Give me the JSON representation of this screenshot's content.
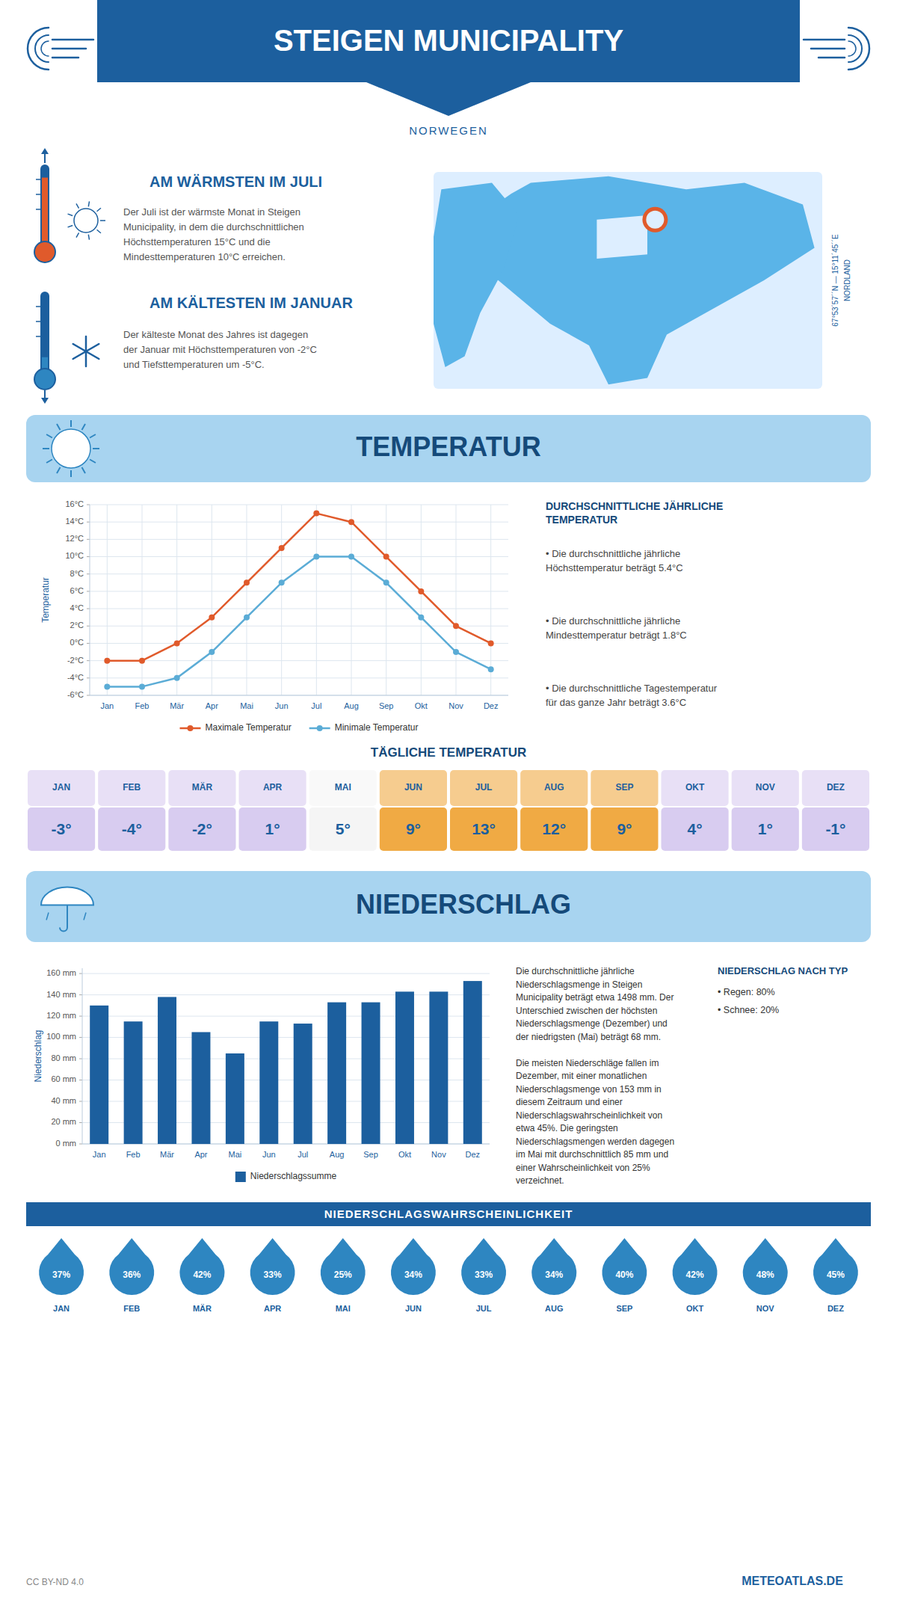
{
  "title": "STEIGEN MUNICIPALITY",
  "subtitle": "NORWEGEN",
  "annotations": [
    "AM WÄRMSTEN IM JULI",
    "Der Juli ist der wärmste Monat in Steigen\nMunicipality, in dem die durchschnittlichen\nHöchsttemperaturen 15°C und die\nMindesttemperaturen 10°C erreichen.",
    "AM KÄLTESTEN IM JANUAR",
    "Der kälteste Monat des Jahres ist dagegen\nder Januar mit Höchsttemperaturen von -2°C\nund Tiefsttemperaturen um -5°C.",
    "67°53´57´´N — 15°11´45´´E",
    "NORDLAND",
    "CC BY-ND 4.0",
    "METEOATLAS.DE"
  ],
  "chart_data": [
    {
      "type": "line",
      "title": "TEMPERATUR",
      "categories": [
        "Jan",
        "Feb",
        "Mär",
        "Apr",
        "Mai",
        "Jun",
        "Jul",
        "Aug",
        "Sep",
        "Okt",
        "Nov",
        "Dez"
      ],
      "series": [
        {
          "name": "Maximale Temperatur",
          "color": "#e05a2b",
          "marker": "circle",
          "values": [
            -2,
            -2,
            0,
            3,
            7,
            11,
            15,
            14,
            10,
            6,
            2,
            0
          ]
        },
        {
          "name": "Minimale Temperatur",
          "color": "#5bacd6",
          "marker": "circle",
          "values": [
            -5,
            -5,
            -4,
            -1,
            3,
            7,
            10,
            10,
            7,
            3,
            -1,
            -3
          ]
        }
      ],
      "y_label": "Temperatur",
      "ylim": [
        -6,
        16
      ],
      "yticks": [
        {
          "value": -6,
          "label": "-6°C"
        },
        {
          "value": -4,
          "label": "-4°C"
        },
        {
          "value": -2,
          "label": "-2°C"
        },
        {
          "value": 0,
          "label": "0°C"
        },
        {
          "value": 2,
          "label": "2°C"
        },
        {
          "value": 4,
          "label": "4°C"
        },
        {
          "value": 6,
          "label": "6°C"
        },
        {
          "value": 8,
          "label": "8°C"
        },
        {
          "value": 10,
          "label": "10°C"
        },
        {
          "value": 12,
          "label": "12°C"
        },
        {
          "value": 14,
          "label": "14°C"
        },
        {
          "value": 16,
          "label": "16°C"
        }
      ],
      "grid": true,
      "legend": "bottom",
      "annotations": [
        "DURCHSCHNITTLICHE JÄHRLICHE\nTEMPERATUR",
        "• Die durchschnittliche jährliche\nHöchsttemperatur beträgt 5.4°C",
        "• Die durchschnittliche jährliche\nMindesttemperatur beträgt 1.8°C",
        "• Die durchschnittliche Tagestemperatur\nfür das ganze Jahr beträgt 3.6°C"
      ]
    },
    {
      "type": "table",
      "title": "TÄGLICHE TEMPERATUR",
      "categories": [
        "JAN",
        "FEB",
        "MÄR",
        "APR",
        "MAI",
        "JUN",
        "JUL",
        "AUG",
        "SEP",
        "OKT",
        "NOV",
        "DEZ"
      ],
      "values": [
        -3,
        -4,
        -2,
        1,
        5,
        9,
        13,
        12,
        9,
        4,
        1,
        -1
      ],
      "value_labels": [
        "-3°",
        "-4°",
        "-2°",
        "1°",
        "5°",
        "9°",
        "13°",
        "12°",
        "9°",
        "4°",
        "1°",
        "-1°"
      ],
      "colors": [
        "#d8ccf0",
        "#d8ccf0",
        "#d8ccf0",
        "#d8ccf0",
        "#f5f5f5",
        "#f0aa44",
        "#f0aa44",
        "#f0aa44",
        "#f0aa44",
        "#d8ccf0",
        "#d8ccf0",
        "#d8ccf0"
      ],
      "data_labels": true
    },
    {
      "type": "bar",
      "title": "NIEDERSCHLAG",
      "categories": [
        "Jan",
        "Feb",
        "Mär",
        "Apr",
        "Mai",
        "Jun",
        "Jul",
        "Aug",
        "Sep",
        "Okt",
        "Nov",
        "Dez"
      ],
      "series": [
        {
          "name": "Niederschlagssumme",
          "color": "#1c5f9e",
          "values": [
            130,
            115,
            138,
            105,
            85,
            115,
            113,
            133,
            133,
            143,
            143,
            153
          ]
        }
      ],
      "y_label": "Niederschlag",
      "ylim": [
        0,
        165
      ],
      "yticks": [
        {
          "value": 0,
          "label": "0 mm"
        },
        {
          "value": 20,
          "label": "20 mm"
        },
        {
          "value": 40,
          "label": "40 mm"
        },
        {
          "value": 60,
          "label": "60 mm"
        },
        {
          "value": 80,
          "label": "80 mm"
        },
        {
          "value": 100,
          "label": "100 mm"
        },
        {
          "value": 120,
          "label": "120 mm"
        },
        {
          "value": 140,
          "label": "140 mm"
        },
        {
          "value": 160,
          "label": "160 mm"
        }
      ],
      "grid": true,
      "legend": "bottom",
      "annotations": [
        "Die durchschnittliche jährliche\nNiederschlagsmenge in Steigen\nMunicipality beträgt etwa 1498 mm. Der\nUnterschied zwischen der höchsten\nNiederschlagsmenge (Dezember) und\nder niedrigsten (Mai) beträgt 68 mm.\n\nDie meisten Niederschläge fallen im\nDezember, mit einer monatlichen\nNiederschlagsmenge von 153 mm in\ndiesem Zeitraum und einer\nNiederschlagswahrscheinlichkeit von\netwa 45%. Die geringsten\nNiederschlagsmengen werden dagegen\nim Mai mit durchschnittlich 85 mm und\neiner Wahrscheinlichkeit von 25%\nverzeichnet.",
        "NIEDERSCHLAG NACH TYP",
        "• Regen: 80%",
        "• Schnee: 20%"
      ]
    },
    {
      "type": "table",
      "marker": "drop",
      "title": "NIEDERSCHLAGSWAHRSCHEINLICHKEIT",
      "categories": [
        "JAN",
        "FEB",
        "MÄR",
        "APR",
        "MAI",
        "JUN",
        "JUL",
        "AUG",
        "SEP",
        "OKT",
        "NOV",
        "DEZ"
      ],
      "values": [
        37,
        36,
        42,
        33,
        25,
        34,
        33,
        34,
        40,
        42,
        48,
        45
      ],
      "value_labels": [
        "37%",
        "36%",
        "42%",
        "33%",
        "25%",
        "34%",
        "33%",
        "34%",
        "40%",
        "42%",
        "48%",
        "45%"
      ],
      "color": "#2e86c1",
      "data_labels": true
    }
  ]
}
